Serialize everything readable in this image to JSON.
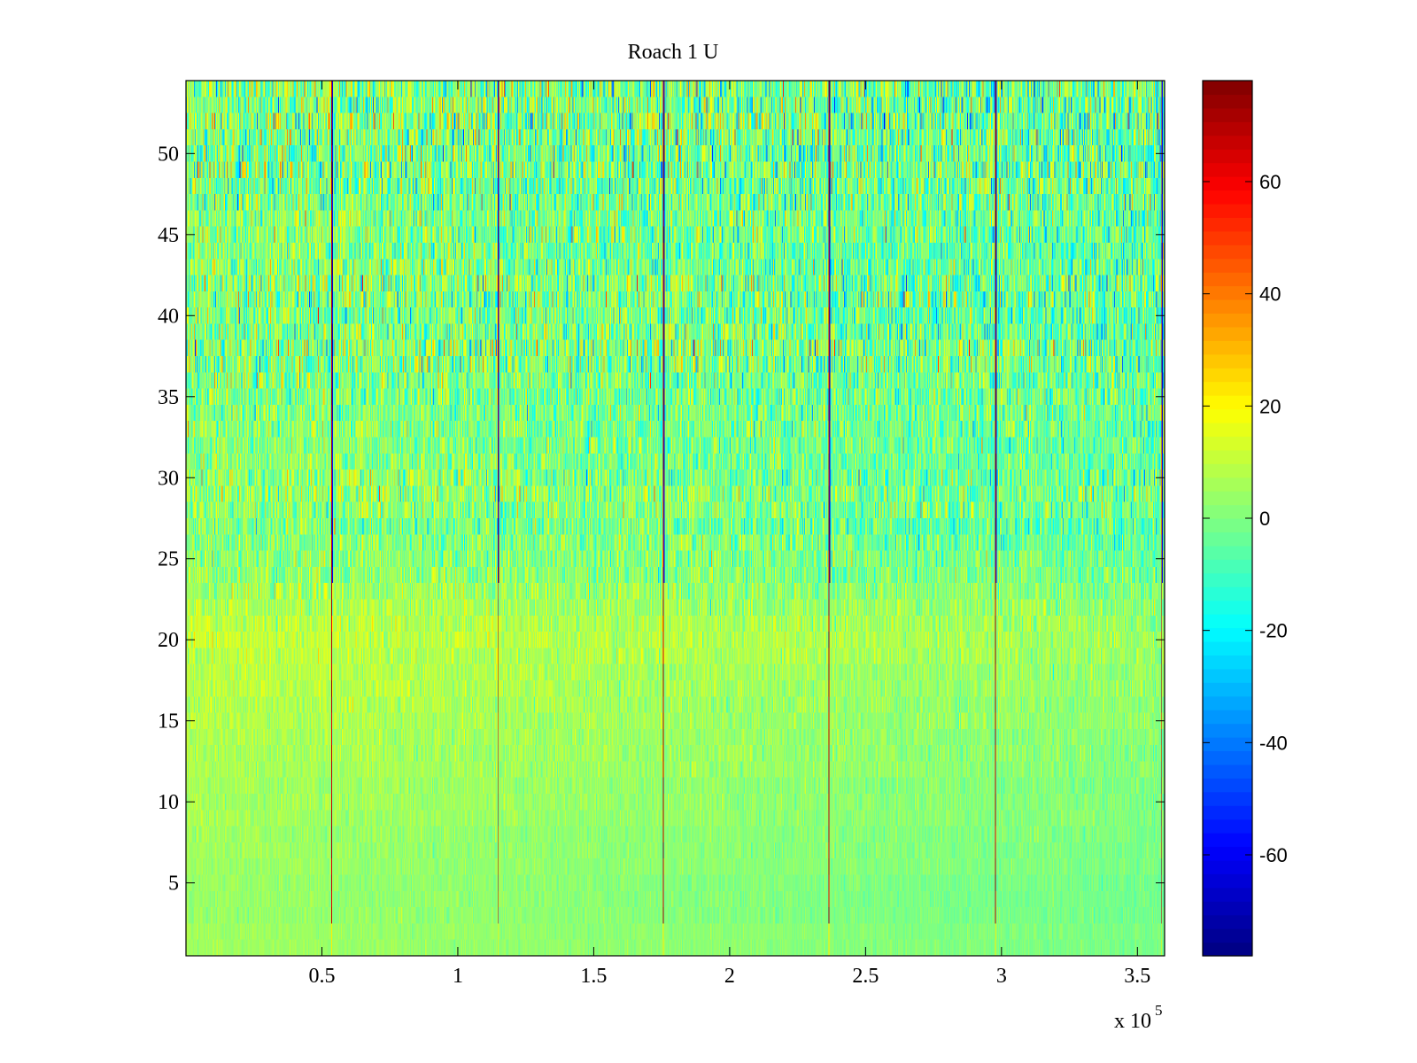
{
  "chart_data": {
    "type": "heatmap",
    "title": "Roach 1 U",
    "xlabel": "",
    "ylabel": "",
    "x_exponent_label": "x 10",
    "x_exponent_power": "5",
    "xlim": [
      0,
      3.6
    ],
    "ylim": [
      0.5,
      54.5
    ],
    "x_ticks": [
      {
        "value": 0.5,
        "label": "0.5"
      },
      {
        "value": 1.0,
        "label": "1"
      },
      {
        "value": 1.5,
        "label": "1.5"
      },
      {
        "value": 2.0,
        "label": "2"
      },
      {
        "value": 2.5,
        "label": "2.5"
      },
      {
        "value": 3.0,
        "label": "3"
      },
      {
        "value": 3.5,
        "label": "3.5"
      }
    ],
    "y_ticks": [
      {
        "value": 5,
        "label": "5"
      },
      {
        "value": 10,
        "label": "10"
      },
      {
        "value": 15,
        "label": "15"
      },
      {
        "value": 20,
        "label": "20"
      },
      {
        "value": 25,
        "label": "25"
      },
      {
        "value": 30,
        "label": "30"
      },
      {
        "value": 35,
        "label": "35"
      },
      {
        "value": 40,
        "label": "40"
      },
      {
        "value": 45,
        "label": "45"
      },
      {
        "value": 50,
        "label": "50"
      }
    ],
    "colorbar": {
      "colormap": "jet",
      "clim": [
        -78,
        78
      ],
      "ticks": [
        {
          "value": 60,
          "label": "60"
        },
        {
          "value": 40,
          "label": "40"
        },
        {
          "value": 20,
          "label": "20"
        },
        {
          "value": 0,
          "label": "0"
        },
        {
          "value": -20,
          "label": "-20"
        },
        {
          "value": -40,
          "label": "-40"
        },
        {
          "value": -60,
          "label": "-60"
        }
      ]
    },
    "grid": false,
    "rows": 54,
    "columns": 1200,
    "spike_columns_x": [
      0.535,
      1.146,
      1.757,
      2.366,
      2.977,
      3.59
    ],
    "row_profile_description": "values near 0 to +10 in lower rows, increasing variance toward upper rows",
    "row_bias": [
      5,
      5,
      4,
      4,
      4,
      5,
      5,
      5,
      6,
      6,
      6,
      7,
      7,
      7,
      8,
      8,
      9,
      9,
      10,
      11,
      10,
      8,
      6,
      4,
      3,
      2,
      0,
      3,
      4,
      2,
      2,
      1,
      2,
      2,
      1,
      1,
      2,
      3,
      1,
      0,
      1,
      2,
      1,
      0,
      1,
      2,
      1,
      0,
      1,
      0,
      1,
      2,
      1,
      2
    ],
    "row_spread": [
      4,
      4,
      5,
      5,
      5,
      5,
      6,
      6,
      6,
      7,
      7,
      7,
      8,
      8,
      8,
      9,
      9,
      9,
      10,
      10,
      11,
      12,
      14,
      16,
      17,
      18,
      19,
      20,
      22,
      22,
      18,
      18,
      20,
      20,
      22,
      22,
      28,
      30,
      26,
      24,
      28,
      28,
      24,
      22,
      24,
      24,
      26,
      28,
      30,
      30,
      30,
      32,
      30,
      30
    ],
    "right_trend": -6
  }
}
